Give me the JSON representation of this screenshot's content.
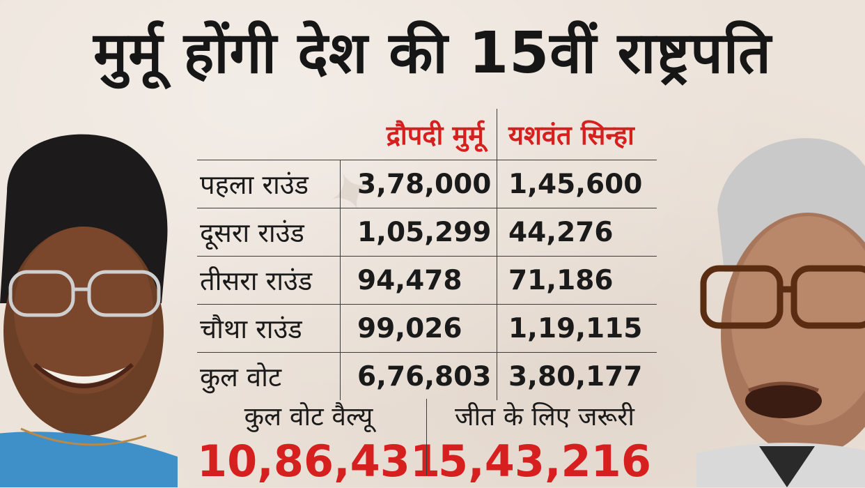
{
  "headline": "मुर्मू होंगी देश की 15वीं राष्ट्रपति",
  "table": {
    "candidates": [
      "द्रौपदी मुर्मू",
      "यशवंत सिन्हा"
    ],
    "rows": [
      {
        "label": "पहला राउंड",
        "murmu": "3,78,000",
        "sinha": "1,45,600"
      },
      {
        "label": "दूसरा राउंड",
        "murmu": "1,05,299",
        "sinha": "44,276"
      },
      {
        "label": "तीसरा राउंड",
        "murmu": "94,478",
        "sinha": "71,186"
      },
      {
        "label": "चौथा राउंड",
        "murmu": "99,026",
        "sinha": "1,19,115"
      },
      {
        "label": "कुल वोट",
        "murmu": "6,76,803",
        "sinha": "3,80,177"
      }
    ]
  },
  "summary": {
    "total_value_label": "कुल वोट वैल्यू",
    "total_value": "10,86,431",
    "required_label": "जीत के लिए जरूरी",
    "required_value": "5,43,216"
  },
  "colors": {
    "accent_red": "#d6201f",
    "background": "#ece3da",
    "text": "#1a1a1a"
  }
}
